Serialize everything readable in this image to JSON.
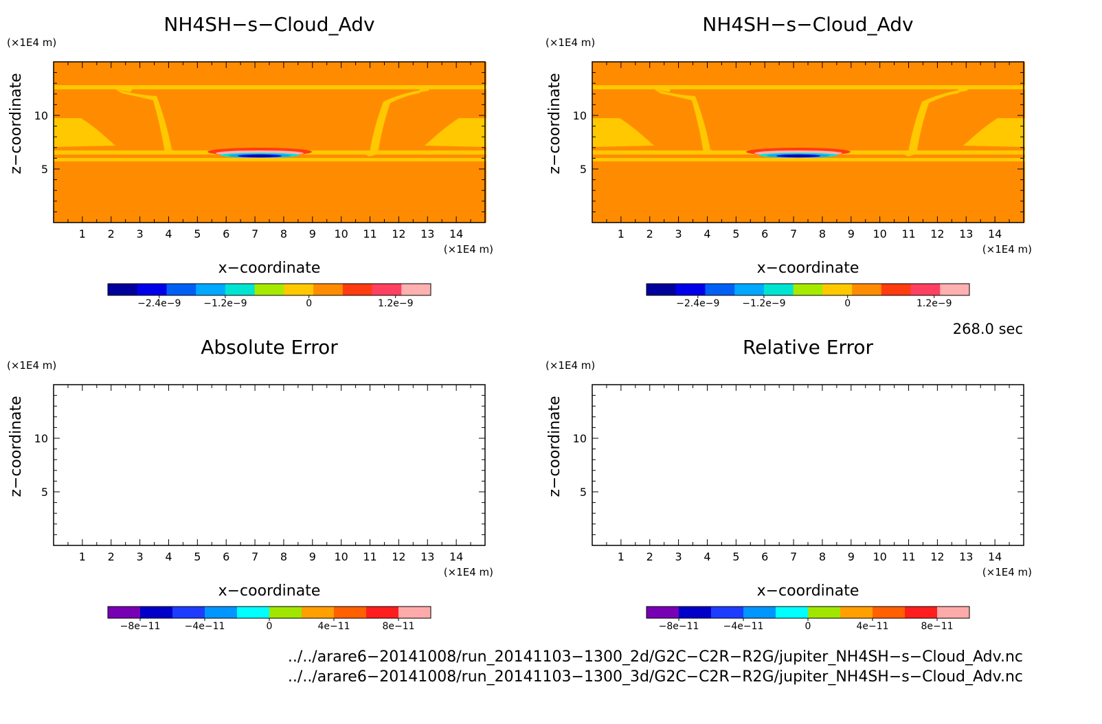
{
  "chart_data": [
    {
      "type": "heatmap",
      "title": "NH4SH−s−Cloud_Adv",
      "xlabel": "x−coordinate",
      "ylabel": "z−coordinate",
      "x_unit": "(×1E4 m)",
      "y_unit": "(×1E4 m)",
      "xlim": [
        0,
        15
      ],
      "ylim": [
        0,
        15
      ],
      "x_ticks": [
        "1",
        "2",
        "3",
        "4",
        "5",
        "6",
        "7",
        "8",
        "9",
        "10",
        "11",
        "12",
        "13",
        "14"
      ],
      "y_ticks": [
        "5",
        "10"
      ],
      "background_level": "0 to 4e-10 (orange)",
      "colorbar": {
        "colors": [
          "#00009c",
          "#0000ea",
          "#005ff5",
          "#00a8ff",
          "#00e4d2",
          "#a6ea00",
          "#ffc800",
          "#ff8c00",
          "#ff3c10",
          "#ff4060",
          "#ffb0b0"
        ],
        "tick_labels": [
          "−2.4e−9",
          "−1.2e−9",
          "0",
          "1.2e−9"
        ]
      }
    },
    {
      "type": "heatmap",
      "title": "NH4SH−s−Cloud_Adv",
      "xlabel": "x−coordinate",
      "ylabel": "z−coordinate",
      "x_unit": "(×1E4 m)",
      "y_unit": "(×1E4 m)",
      "xlim": [
        0,
        15
      ],
      "ylim": [
        0,
        15
      ],
      "x_ticks": [
        "1",
        "2",
        "3",
        "4",
        "5",
        "6",
        "7",
        "8",
        "9",
        "10",
        "11",
        "12",
        "13",
        "14"
      ],
      "y_ticks": [
        "5",
        "10"
      ],
      "background_level": "0 to 4e-10 (orange)",
      "colorbar": {
        "colors": [
          "#00009c",
          "#0000ea",
          "#005ff5",
          "#00a8ff",
          "#00e4d2",
          "#a6ea00",
          "#ffc800",
          "#ff8c00",
          "#ff3c10",
          "#ff4060",
          "#ffb0b0"
        ],
        "tick_labels": [
          "−2.4e−9",
          "−1.2e−9",
          "0",
          "1.2e−9"
        ]
      }
    },
    {
      "type": "heatmap",
      "title": "Absolute Error",
      "xlabel": "x−coordinate",
      "ylabel": "z−coordinate",
      "x_unit": "(×1E4 m)",
      "y_unit": "(×1E4 m)",
      "xlim": [
        0,
        15
      ],
      "ylim": [
        0,
        15
      ],
      "x_ticks": [
        "1",
        "2",
        "3",
        "4",
        "5",
        "6",
        "7",
        "8",
        "9",
        "10",
        "11",
        "12",
        "13",
        "14"
      ],
      "y_ticks": [
        "5",
        "10"
      ],
      "values": "empty",
      "colorbar": {
        "colors": [
          "#7800b4",
          "#0000c8",
          "#1e3cff",
          "#0096ff",
          "#00ffff",
          "#a0e600",
          "#ffa000",
          "#ff6000",
          "#ff1e1e",
          "#ffaaaa"
        ],
        "tick_labels": [
          "−8e−11",
          "−4e−11",
          "0",
          "4e−11",
          "8e−11"
        ]
      }
    },
    {
      "type": "heatmap",
      "title": "Relative Error",
      "xlabel": "x−coordinate",
      "ylabel": "z−coordinate",
      "x_unit": "(×1E4 m)",
      "y_unit": "(×1E4 m)",
      "xlim": [
        0,
        15
      ],
      "ylim": [
        0,
        15
      ],
      "x_ticks": [
        "1",
        "2",
        "3",
        "4",
        "5",
        "6",
        "7",
        "8",
        "9",
        "10",
        "11",
        "12",
        "13",
        "14"
      ],
      "y_ticks": [
        "5",
        "10"
      ],
      "values": "empty",
      "colorbar": {
        "colors": [
          "#7800b4",
          "#0000c8",
          "#1e3cff",
          "#0096ff",
          "#00ffff",
          "#a0e600",
          "#ffa000",
          "#ff6000",
          "#ff1e1e",
          "#ffaaaa"
        ],
        "tick_labels": [
          "−8e−11",
          "−4e−11",
          "0",
          "4e−11",
          "8e−11"
        ]
      }
    }
  ],
  "time_label": "268.0 sec",
  "file_paths": [
    "../../arare6−20141008/run_20141103−1300_2d/G2C−C2R−R2G/jupiter_NH4SH−s−Cloud_Adv.nc",
    "../../arare6−20141008/run_20141103−1300_3d/G2C−C2R−R2G/jupiter_NH4SH−s−Cloud_Adv.nc"
  ]
}
